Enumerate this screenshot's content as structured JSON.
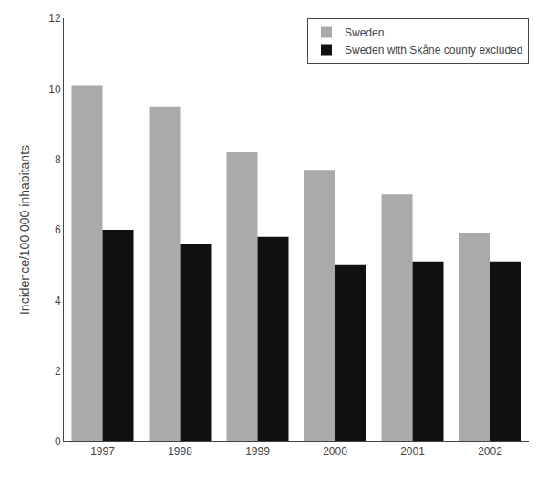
{
  "chart_data": {
    "type": "bar",
    "categories": [
      "1997",
      "1998",
      "1999",
      "2000",
      "2001",
      "2002"
    ],
    "series": [
      {
        "name": "Sweden",
        "color": "#aaaaaa",
        "values": [
          10.1,
          9.5,
          8.2,
          7.7,
          7.0,
          5.9
        ]
      },
      {
        "name": "Sweden with Skåne county excluded",
        "color": "#111111",
        "values": [
          6.0,
          5.6,
          5.8,
          5.0,
          5.1,
          5.1
        ]
      }
    ],
    "ylabel": "Incidence/100 000 inhabitants",
    "ylim": [
      0,
      12
    ],
    "yticks": [
      0,
      2,
      4,
      6,
      8,
      10,
      12
    ],
    "grid": false,
    "legend": "upper right"
  }
}
